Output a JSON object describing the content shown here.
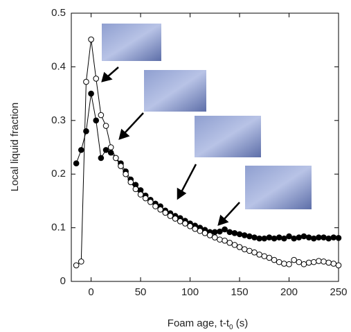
{
  "chart_data": {
    "type": "line",
    "y_label": "Local liquid fraction",
    "x_label_parts": [
      "Foam age, t-t",
      "0",
      " (s)"
    ],
    "x": [
      -15,
      -10,
      -5,
      0,
      5,
      10,
      15,
      20,
      25,
      30,
      35,
      40,
      45,
      50,
      55,
      60,
      65,
      70,
      75,
      80,
      85,
      90,
      95,
      100,
      105,
      110,
      115,
      120,
      125,
      130,
      135,
      140,
      145,
      150,
      155,
      160,
      165,
      170,
      175,
      180,
      185,
      190,
      195,
      200,
      205,
      210,
      215,
      220,
      225,
      230,
      235,
      240,
      245,
      250
    ],
    "series": [
      {
        "color": "#000000",
        "filled": true,
        "values": [
          0.22,
          0.245,
          0.28,
          0.35,
          0.3,
          0.23,
          0.245,
          0.24,
          0.23,
          0.22,
          0.205,
          0.19,
          0.18,
          0.17,
          0.16,
          0.152,
          0.145,
          0.14,
          0.132,
          0.127,
          0.122,
          0.118,
          0.113,
          0.108,
          0.104,
          0.1,
          0.096,
          0.092,
          0.092,
          0.093,
          0.097,
          0.092,
          0.09,
          0.088,
          0.086,
          0.084,
          0.082,
          0.08,
          0.08,
          0.082,
          0.08,
          0.082,
          0.08,
          0.084,
          0.08,
          0.082,
          0.084,
          0.082,
          0.08,
          0.082,
          0.082,
          0.08,
          0.082,
          0.081
        ]
      },
      {
        "color": "#000000",
        "filled": false,
        "values": [
          0.03,
          0.037,
          0.372,
          0.451,
          0.378,
          0.31,
          0.29,
          0.25,
          0.23,
          0.215,
          0.2,
          0.185,
          0.172,
          0.162,
          0.155,
          0.148,
          0.14,
          0.134,
          0.128,
          0.122,
          0.117,
          0.112,
          0.108,
          0.103,
          0.098,
          0.094,
          0.09,
          0.086,
          0.082,
          0.078,
          0.076,
          0.072,
          0.068,
          0.064,
          0.06,
          0.057,
          0.054,
          0.05,
          0.047,
          0.044,
          0.04,
          0.036,
          0.033,
          0.032,
          0.04,
          0.036,
          0.032,
          0.035,
          0.036,
          0.038,
          0.037,
          0.035,
          0.033,
          0.03
        ]
      }
    ],
    "xlim": [
      -20,
      250
    ],
    "xticks": [
      0,
      50,
      100,
      150,
      200,
      250
    ],
    "ylim": [
      0,
      0.5
    ],
    "yticks": [
      0,
      0.1,
      0.2,
      0.3,
      0.4,
      0.5
    ]
  }
}
